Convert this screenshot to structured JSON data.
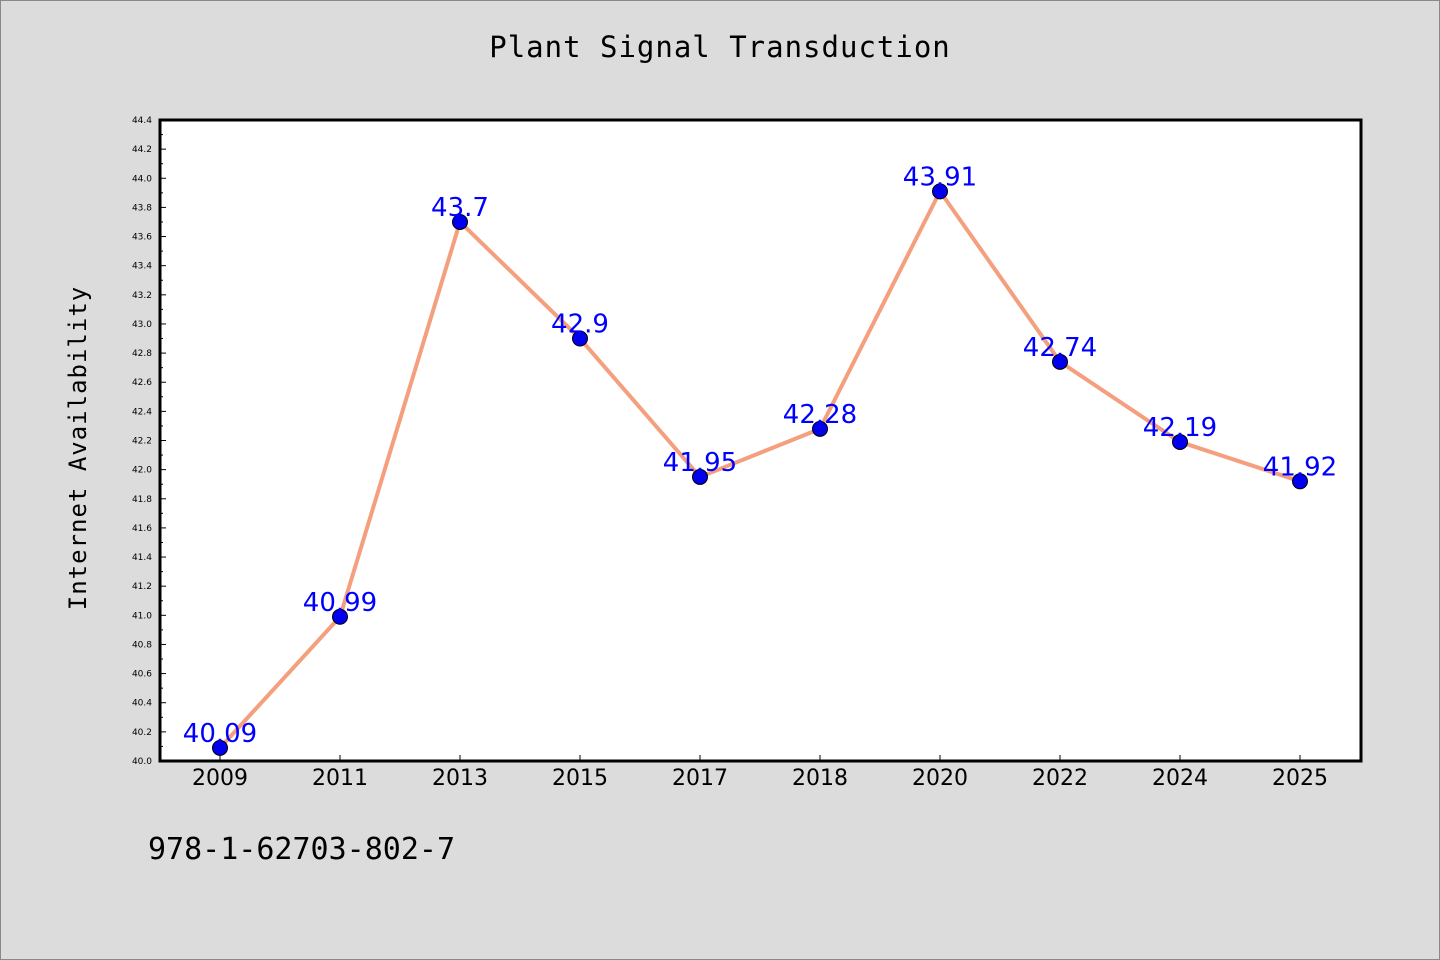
{
  "chart_data": {
    "type": "line",
    "title": "Plant Signal Transduction",
    "ylabel": "Internet Availability",
    "xlabel": "",
    "categories": [
      "2009",
      "2011",
      "2013",
      "2015",
      "2017",
      "2018",
      "2020",
      "2022",
      "2024",
      "2025"
    ],
    "series": [
      {
        "values": [
          40.09,
          40.99,
          43.7,
          42.9,
          41.95,
          42.28,
          43.91,
          42.74,
          42.19,
          41.92
        ],
        "labels": [
          "40.09",
          "40.99",
          "43.7",
          "42.9",
          "41.95",
          "42.28",
          "43.91",
          "42.74",
          "42.19",
          "41.92"
        ],
        "line_color": "#f4a07f",
        "marker_color": "#0000ee"
      }
    ],
    "ylim": [
      40.0,
      44.4
    ],
    "yticks": [
      "40.0",
      "40.2",
      "40.4",
      "40.6",
      "40.8",
      "41.0",
      "41.2",
      "41.4",
      "41.6",
      "41.8",
      "42.0",
      "42.2",
      "42.4",
      "42.6",
      "42.8",
      "43.0",
      "43.2",
      "43.4",
      "43.6",
      "43.8",
      "44.0",
      "44.2",
      "44.4"
    ],
    "grid": false,
    "label_color": "#0000ff"
  },
  "footer": {
    "code": "978-1-62703-802-7"
  }
}
